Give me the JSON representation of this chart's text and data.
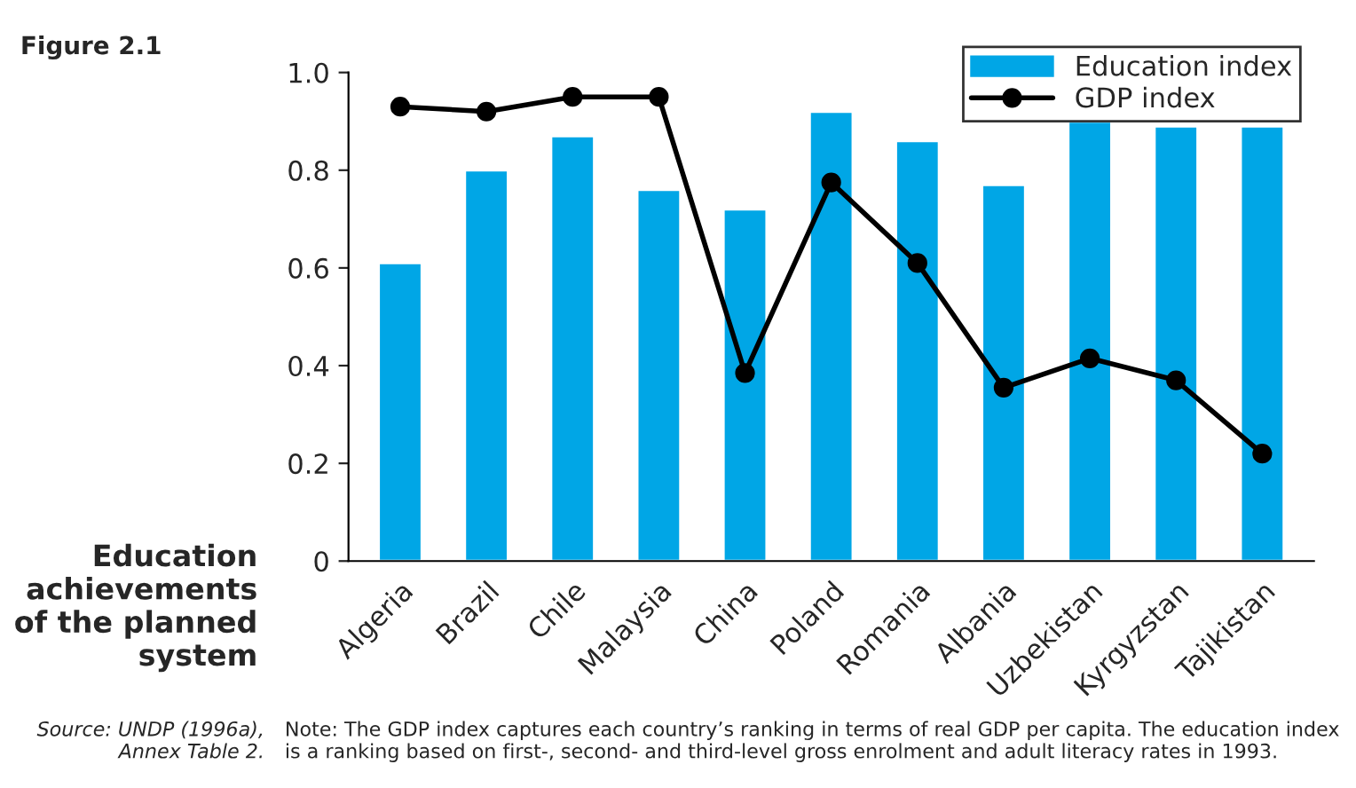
{
  "chart_data": {
    "type": "bar",
    "title": "Education achievements of the planned system",
    "subtitle": "Figure 2.1",
    "categories": [
      "Algeria",
      "Brazil",
      "Chile",
      "Malaysia",
      "China",
      "Poland",
      "Romania",
      "Albania",
      "Uzbekistan",
      "Kyrgyzstan",
      "Tajikistan"
    ],
    "series": [
      {
        "name": "Education index",
        "color": "#00a6e6",
        "values": [
          0.61,
          0.8,
          0.87,
          0.76,
          0.72,
          0.92,
          0.86,
          0.77,
          0.9,
          0.89,
          0.89
        ]
      },
      {
        "name": "GDP index",
        "type": "line",
        "color": "#000000",
        "values": [
          0.93,
          0.92,
          0.95,
          0.95,
          0.385,
          0.775,
          0.61,
          0.355,
          0.415,
          0.37,
          0.22
        ]
      }
    ],
    "ylim": [
      0,
      1.0
    ],
    "yticks": [
      0,
      0.2,
      0.4,
      0.6,
      0.8,
      {
        "value": 1,
        "label": "1.0"
      }
    ],
    "grid": false,
    "legend": "top right",
    "marker": "circle",
    "line_style": "solid",
    "annotations": [
      "Source: UNDP (1996a), Annex Table 2.",
      "Note: The GDP index captures each country’s ranking in terms of real GDP per capita. The education index is a ranking based on first-, second- and third-level gross enrolment and adult literacy rates in 1993."
    ]
  }
}
